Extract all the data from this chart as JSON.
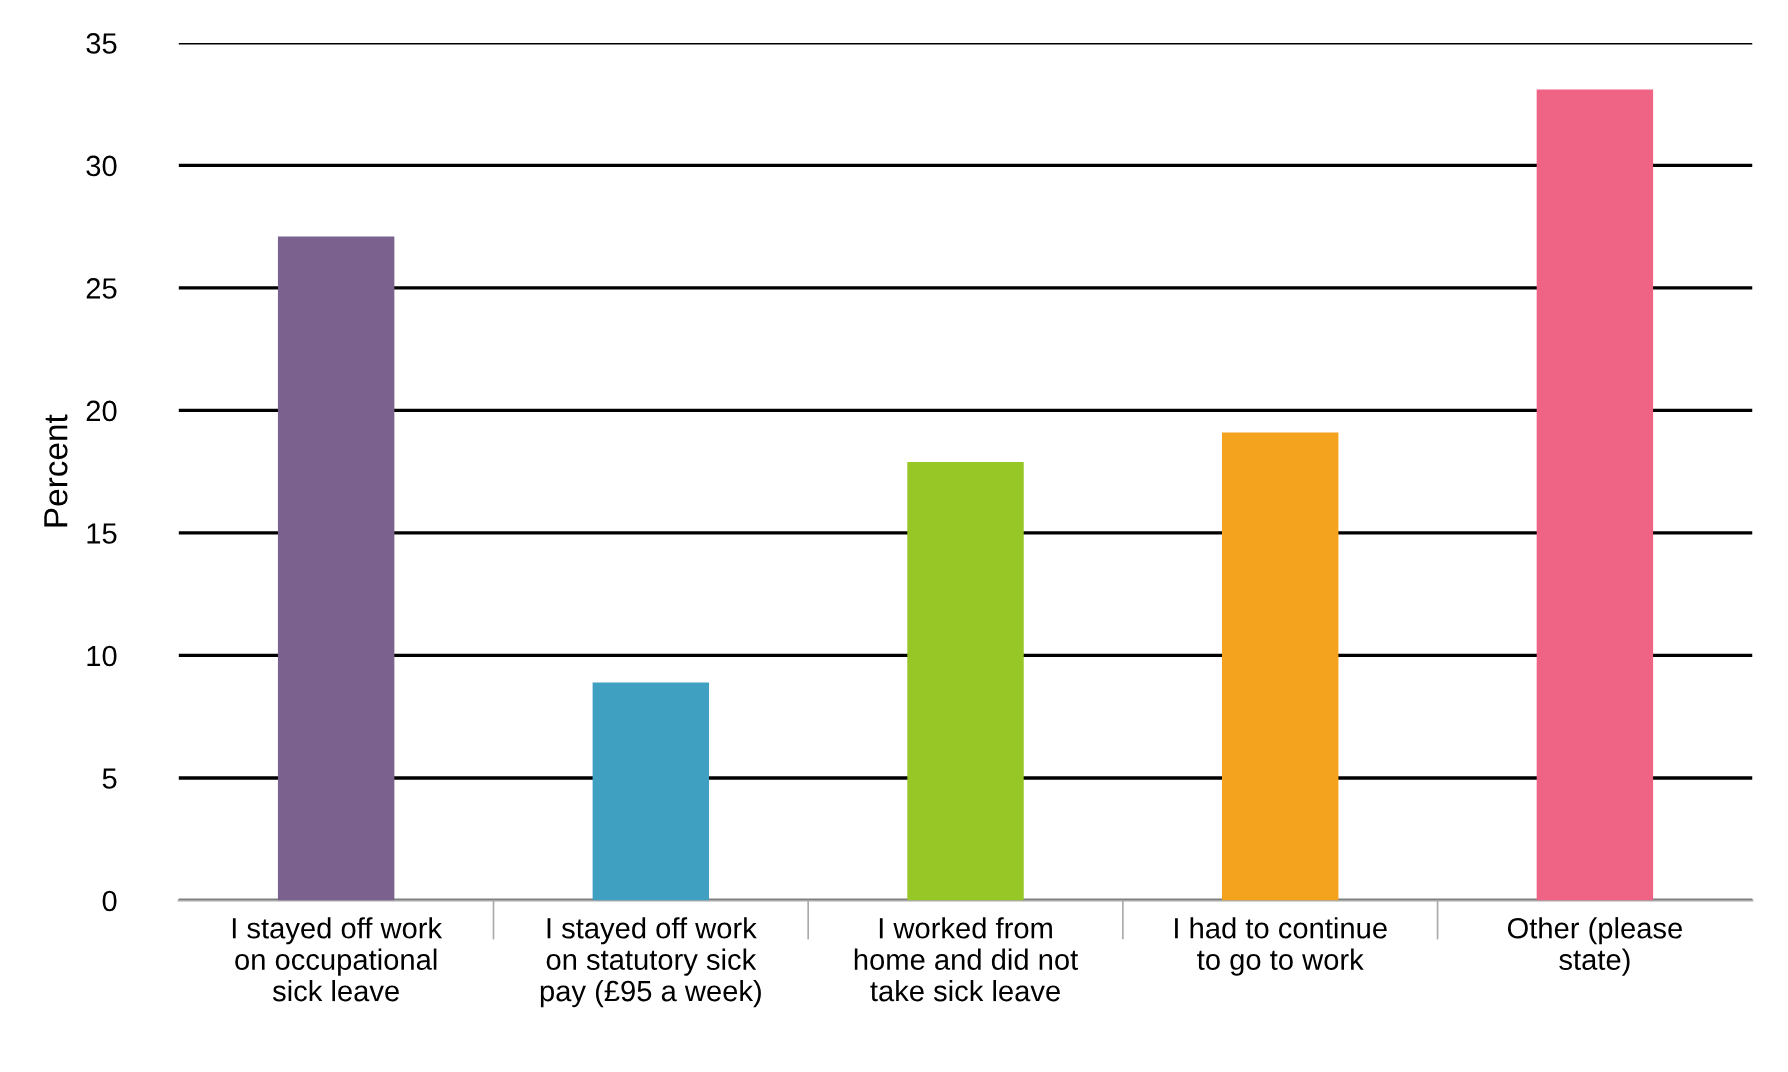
{
  "chart_data": {
    "type": "bar",
    "ylabel": "Percent",
    "categories": [
      "I stayed off work\non occupational\nsick leave",
      "I stayed off work\non statutory sick\npay (£95 a week)",
      "I worked from\nhome and did not\ntake sick leave",
      "I had to continue\nto go to work",
      "Other (please\nstate)"
    ],
    "values": [
      27.1,
      8.9,
      17.9,
      19.1,
      33.1
    ],
    "colors": [
      "#7b628e",
      "#3fa0c2",
      "#97c627",
      "#f3a31d",
      "#ef6385"
    ],
    "ylim": [
      0,
      35
    ],
    "yticks": [
      0,
      5,
      10,
      15,
      20,
      25,
      30,
      35
    ],
    "grid": "y"
  }
}
